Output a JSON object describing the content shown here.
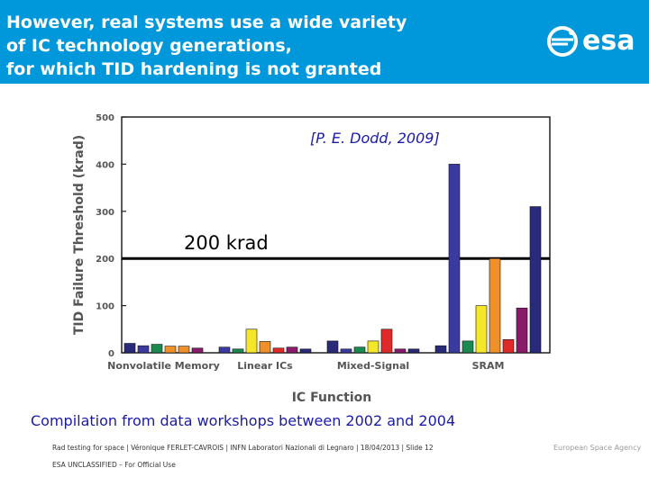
{
  "header": {
    "title_lines": [
      "However, real systems use a wide variety",
      "of IC technology generations,",
      "for which TID hardening is not granted"
    ],
    "logo_text": "esa",
    "background": "#0098db"
  },
  "reference": "[P. E. Dodd, 2009]",
  "threshold_label": "200 krad",
  "caption": "Compilation from data workshops between 2002 and 2004",
  "footer": {
    "text": "Rad testing for space | Véronique FERLET-CAVROIS | INFN Laboratori Nazionali di Legnaro | 18/04/2013 | Slide 12",
    "classification": "ESA UNCLASSIFIED – For Official Use",
    "agency": "European Space Agency"
  },
  "chart_data": {
    "type": "bar",
    "ylabel": "TID Failure Threshold (krad)",
    "xlabel": "IC Function",
    "ylim": [
      0,
      500
    ],
    "yticks": [
      0,
      100,
      200,
      300,
      400,
      500
    ],
    "grid": false,
    "reference_line": 200,
    "categories": [
      "Nonvolatile Memory",
      "Linear ICs",
      "Mixed-Signal",
      "SRAM"
    ],
    "bars": [
      {
        "group": "Nonvolatile Memory",
        "value": 20,
        "color": "#2a2a7a"
      },
      {
        "group": "Nonvolatile Memory",
        "value": 15,
        "color": "#3a3aa0"
      },
      {
        "group": "Nonvolatile Memory",
        "value": 18,
        "color": "#1a8a50"
      },
      {
        "group": "Nonvolatile Memory",
        "value": 14,
        "color": "#f0902a"
      },
      {
        "group": "Nonvolatile Memory",
        "value": 14,
        "color": "#f0902a"
      },
      {
        "group": "Nonvolatile Memory",
        "value": 10,
        "color": "#8a1a6a"
      },
      {
        "group": "Linear ICs",
        "value": 12,
        "color": "#3a3aa0"
      },
      {
        "group": "Linear ICs",
        "value": 8,
        "color": "#1a8a50"
      },
      {
        "group": "Linear ICs",
        "value": 50,
        "color": "#f5e62a"
      },
      {
        "group": "Linear ICs",
        "value": 24,
        "color": "#f0902a"
      },
      {
        "group": "Linear ICs",
        "value": 10,
        "color": "#e02a2a"
      },
      {
        "group": "Linear ICs",
        "value": 12,
        "color": "#8a1a6a"
      },
      {
        "group": "Linear ICs",
        "value": 8,
        "color": "#2a2a7a"
      },
      {
        "group": "Mixed-Signal",
        "value": 25,
        "color": "#2a2a7a"
      },
      {
        "group": "Mixed-Signal",
        "value": 8,
        "color": "#3a3aa0"
      },
      {
        "group": "Mixed-Signal",
        "value": 12,
        "color": "#1a8a50"
      },
      {
        "group": "Mixed-Signal",
        "value": 25,
        "color": "#f5e62a"
      },
      {
        "group": "Mixed-Signal",
        "value": 50,
        "color": "#e02a2a"
      },
      {
        "group": "Mixed-Signal",
        "value": 8,
        "color": "#8a1a6a"
      },
      {
        "group": "Mixed-Signal",
        "value": 8,
        "color": "#2a2a7a"
      },
      {
        "group": "SRAM",
        "value": 15,
        "color": "#2a2a7a"
      },
      {
        "group": "SRAM",
        "value": 400,
        "color": "#3a3aa0"
      },
      {
        "group": "SRAM",
        "value": 25,
        "color": "#1a8a50"
      },
      {
        "group": "SRAM",
        "value": 100,
        "color": "#f5e62a"
      },
      {
        "group": "SRAM",
        "value": 200,
        "color": "#f0902a"
      },
      {
        "group": "SRAM",
        "value": 28,
        "color": "#e02a2a"
      },
      {
        "group": "SRAM",
        "value": 95,
        "color": "#8a1a6a"
      },
      {
        "group": "SRAM",
        "value": 310,
        "color": "#2a2a7a"
      }
    ]
  }
}
